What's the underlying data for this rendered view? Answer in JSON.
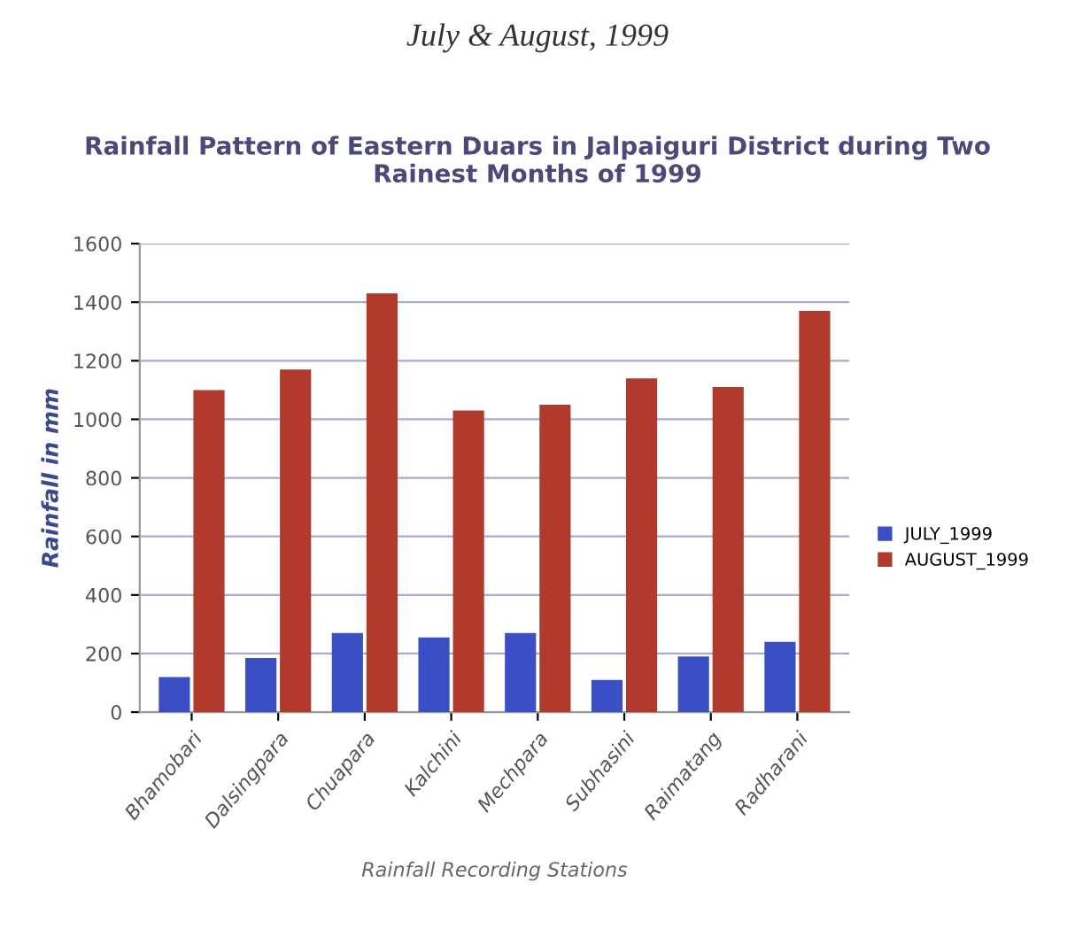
{
  "chart_data": {
    "type": "bar",
    "title": "Rainfall Pattern of Eastern Duars in Jalpaiguri District during Two\nRainest Months of 1999",
    "xlabel": "Rainfall Recording Stations",
    "ylabel": "Rainfall in mm",
    "annotations": [
      "July & August, 1999"
    ],
    "categories": [
      "Bhamobari",
      "Dalsingpara",
      "Chuapara",
      "Kalchini",
      "Mechpara",
      "Subhasini",
      "Raimatang",
      "Radharani"
    ],
    "series": [
      {
        "name": "JULY_1999",
        "color": "#3a4fc4",
        "values": [
          120,
          185,
          270,
          255,
          270,
          110,
          190,
          240
        ]
      },
      {
        "name": "AUGUST_1999",
        "color": "#b03a2e",
        "values": [
          1100,
          1170,
          1430,
          1030,
          1050,
          1140,
          1110,
          1370
        ]
      }
    ],
    "ylim": [
      0,
      1600
    ],
    "yticks": [
      0,
      200,
      400,
      600,
      800,
      1000,
      1200,
      1400,
      1600
    ],
    "grid": "y",
    "legend": "right"
  }
}
